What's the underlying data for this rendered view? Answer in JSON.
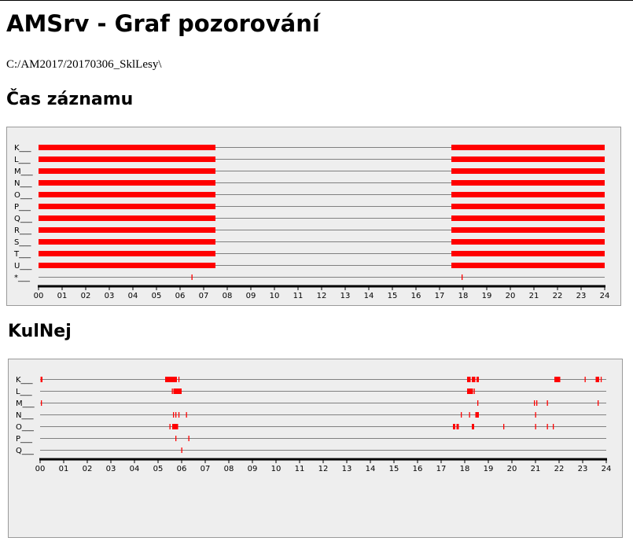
{
  "page": {
    "title": "AMSrv - Graf pozorování",
    "path": "C:/AM2017/20170306_SklLesy\\"
  },
  "colors": {
    "mark": "#ff0000",
    "line": "#808080",
    "axis": "#000000",
    "panel_bg": "#eeeeee"
  },
  "chart_data": [
    {
      "type": "timeline",
      "title": "Čas záznamu",
      "x_range": [
        0,
        24
      ],
      "x_ticks": [
        "00",
        "01",
        "02",
        "03",
        "04",
        "05",
        "06",
        "07",
        "08",
        "09",
        "10",
        "11",
        "12",
        "13",
        "14",
        "15",
        "16",
        "17",
        "18",
        "19",
        "20",
        "21",
        "22",
        "23",
        "24"
      ],
      "row_label_suffix": "___",
      "rows": [
        {
          "name": "K",
          "intervals": [
            [
              0,
              7.5
            ],
            [
              17.5,
              24
            ]
          ]
        },
        {
          "name": "L",
          "intervals": [
            [
              0,
              7.5
            ],
            [
              17.5,
              24
            ]
          ]
        },
        {
          "name": "M",
          "intervals": [
            [
              0,
              7.5
            ],
            [
              17.5,
              24
            ]
          ]
        },
        {
          "name": "N",
          "intervals": [
            [
              0,
              7.5
            ],
            [
              17.5,
              24
            ]
          ]
        },
        {
          "name": "O",
          "intervals": [
            [
              0,
              7.5
            ],
            [
              17.5,
              24
            ]
          ]
        },
        {
          "name": "P",
          "intervals": [
            [
              0,
              7.5
            ],
            [
              17.5,
              24
            ]
          ]
        },
        {
          "name": "Q",
          "intervals": [
            [
              0,
              7.5
            ],
            [
              17.5,
              24
            ]
          ]
        },
        {
          "name": "R",
          "intervals": [
            [
              0,
              7.5
            ],
            [
              17.5,
              24
            ]
          ]
        },
        {
          "name": "S",
          "intervals": [
            [
              0,
              7.5
            ],
            [
              17.5,
              24
            ]
          ]
        },
        {
          "name": "T",
          "intervals": [
            [
              0,
              7.5
            ],
            [
              17.5,
              24
            ]
          ]
        },
        {
          "name": "U",
          "intervals": [
            [
              0,
              7.5
            ],
            [
              17.5,
              24
            ]
          ]
        },
        {
          "name": "*",
          "intervals": [],
          "events": [
            6.5,
            17.95
          ]
        }
      ]
    },
    {
      "type": "timeline",
      "title": "KulNej",
      "x_range": [
        0,
        24
      ],
      "x_ticks": [
        "00",
        "01",
        "02",
        "03",
        "04",
        "05",
        "06",
        "07",
        "08",
        "09",
        "10",
        "11",
        "12",
        "13",
        "14",
        "15",
        "16",
        "17",
        "18",
        "19",
        "20",
        "21",
        "22",
        "23",
        "24"
      ],
      "row_label_suffix": "___",
      "rows": [
        {
          "name": "K",
          "intervals": [
            [
              0.02,
              0.1
            ],
            [
              5.3,
              5.8
            ],
            [
              18.1,
              18.25
            ],
            [
              18.3,
              18.45
            ],
            [
              18.5,
              18.6
            ],
            [
              21.8,
              22.05
            ],
            [
              23.55,
              23.7
            ]
          ],
          "events": [
            5.88,
            23.1,
            23.78
          ]
        },
        {
          "name": "L",
          "intervals": [
            [
              5.65,
              6.0
            ],
            [
              18.1,
              18.35
            ]
          ],
          "events": [
            5.6,
            18.4
          ]
        },
        {
          "name": "M",
          "intervals": [],
          "events": [
            0.05,
            18.55,
            20.95,
            21.05,
            21.5,
            23.65
          ]
        },
        {
          "name": "N",
          "intervals": [
            [
              18.45,
              18.6
            ]
          ],
          "events": [
            5.65,
            5.75,
            5.88,
            6.2,
            17.85,
            18.2,
            21.0
          ]
        },
        {
          "name": "O",
          "intervals": [
            [
              5.6,
              5.85
            ],
            [
              17.5,
              17.6
            ],
            [
              17.65,
              17.75
            ],
            [
              18.3,
              18.4
            ]
          ],
          "events": [
            5.5,
            19.65,
            21.0,
            21.5,
            21.75
          ]
        },
        {
          "name": "P",
          "intervals": [],
          "events": [
            5.75,
            6.3
          ]
        },
        {
          "name": "Q",
          "intervals": [],
          "events": [
            6.0
          ]
        }
      ]
    }
  ]
}
